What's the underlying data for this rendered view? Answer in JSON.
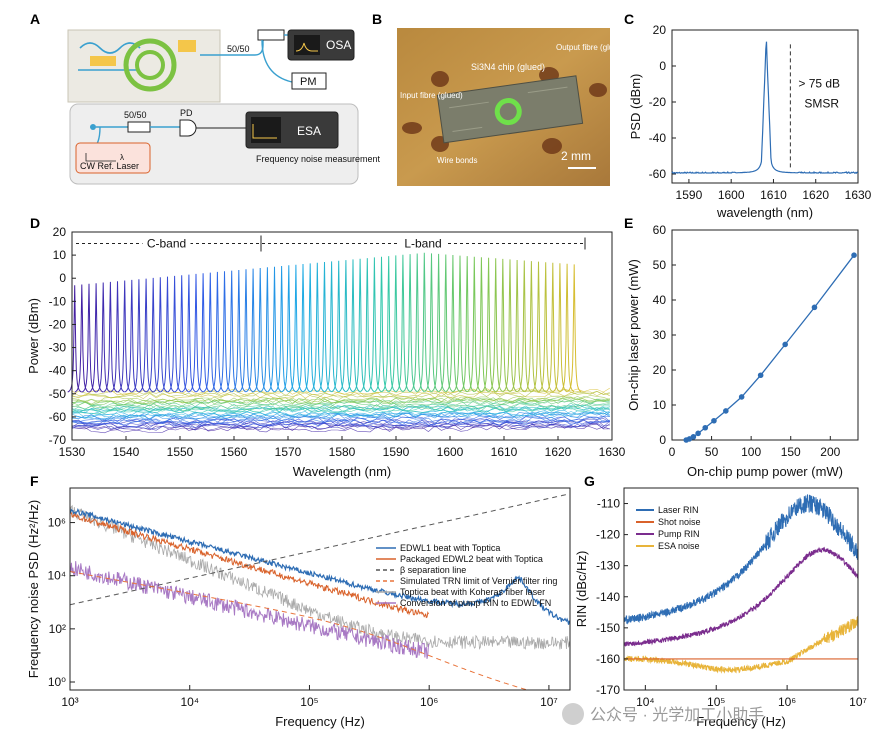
{
  "panels": {
    "A": {
      "letter": "A",
      "splitter_top": "50/50",
      "osa": "OSA",
      "pm": "PM",
      "splitter_bottom": "50/50",
      "pd": "PD",
      "esa": "ESA",
      "laser": "CW Ref. Laser",
      "lambda": "λ",
      "caption": "Frequency noise measurement"
    },
    "B": {
      "letter": "B",
      "chip_label": "Si3N4 chip (glued)",
      "output": "Output fibre (glued)",
      "input": "Input fibre (glued)",
      "wire": "Wire bonds",
      "scale": "2 mm"
    }
  },
  "chart_data": [
    {
      "id": "C",
      "type": "line",
      "letter": "C",
      "xlabel": "wavelength (nm)",
      "ylabel": "PSD (dBm)",
      "xlim": [
        1586,
        1630
      ],
      "ylim": [
        -65,
        20
      ],
      "xticks": [
        1590,
        1600,
        1610,
        1620,
        1630
      ],
      "yticks": [
        20,
        0,
        -20,
        -40,
        -60
      ],
      "peak": {
        "x": 1608.3,
        "y": 15
      },
      "noise_floor": -59.5,
      "annotation": "> 75 dB\nSMSR",
      "annotation_lines": [
        "> 75 dB",
        "SMSR"
      ],
      "dashed_x": 1614,
      "color": "#2e6db4"
    },
    {
      "id": "D",
      "type": "line",
      "letter": "D",
      "xlabel": "Wavelength (nm)",
      "ylabel": "Power (dBm)",
      "xlim": [
        1530,
        1630
      ],
      "ylim": [
        -70,
        20
      ],
      "xticks": [
        1530,
        1540,
        1550,
        1560,
        1570,
        1580,
        1590,
        1600,
        1610,
        1620,
        1630
      ],
      "yticks": [
        20,
        10,
        0,
        -10,
        -20,
        -30,
        -40,
        -50,
        -60,
        -70
      ],
      "bands": [
        {
          "label": "C-band",
          "from": 1530,
          "to": 1565
        },
        {
          "label": "L-band",
          "from": 1565,
          "to": 1625
        }
      ],
      "band_y": 15,
      "line_start": 1530.5,
      "line_end": 1623,
      "num_lines": 71,
      "peak_start": -3,
      "peak_mid": 11,
      "peak_end": 6,
      "noise_floor": -50
    },
    {
      "id": "E",
      "type": "line",
      "letter": "E",
      "xlabel": "On-chip pump power (mW)",
      "ylabel": "On-chip laser power (mW)",
      "xlim": [
        0,
        235
      ],
      "ylim": [
        0,
        60
      ],
      "xticks": [
        0,
        50,
        100,
        150,
        200
      ],
      "yticks": [
        0,
        10,
        20,
        30,
        40,
        50,
        60
      ],
      "x": [
        18,
        22,
        27,
        33,
        42,
        53,
        68,
        88,
        112,
        143,
        180,
        230
      ],
      "y": [
        0,
        0.3,
        0.9,
        1.9,
        3.5,
        5.5,
        8.3,
        12.3,
        18.5,
        27.3,
        37.9,
        52.8
      ],
      "color": "#2e6db4"
    },
    {
      "id": "F",
      "type": "line",
      "letter": "F",
      "xlabel": "Frequency (Hz)",
      "ylabel": "Frequency noise PSD (Hz²/Hz)",
      "xscale": "log",
      "yscale": "log",
      "xlim": [
        1000,
        15000000
      ],
      "ylim": [
        0.5,
        20000000
      ],
      "xtick_labels": [
        "10³",
        "10⁴",
        "10⁵",
        "10⁶",
        "10⁷"
      ],
      "ytick_labels": [
        "10⁰",
        "10²",
        "10⁴",
        "10⁶"
      ],
      "legend": [
        {
          "label": "EDWL1 beat with Toptica",
          "color": "#2e6db4",
          "style": "solid"
        },
        {
          "label": "Packaged EDWL2 beat with Toptica",
          "color": "#d9622b",
          "style": "solid"
        },
        {
          "label": "β separation line",
          "color": "#555555",
          "style": "dashed"
        },
        {
          "label": "Simulated TRN limit of Vernier filter ring",
          "color": "#e8733a",
          "style": "dashed"
        },
        {
          "label": "Toptica beat with Koheras fiber laser",
          "color": "#aaaaaa",
          "style": "solid"
        },
        {
          "label": "Conversion of pump RIN to EDWL FN",
          "color": "#a879c4",
          "style": "solid"
        }
      ]
    },
    {
      "id": "G",
      "type": "line",
      "letter": "G",
      "xlabel": "Frequency (Hz)",
      "ylabel": "RIN (dBc/Hz)",
      "xscale": "log",
      "xlim": [
        5000,
        10000000
      ],
      "ylim": [
        -170,
        -105
      ],
      "xtick_labels": [
        "10⁴",
        "10⁵",
        "10⁶",
        "10⁷"
      ],
      "yticks": [
        -110,
        -120,
        -130,
        -140,
        -150,
        -160,
        -170
      ],
      "legend": [
        {
          "label": "Laser RIN",
          "color": "#2e6db4"
        },
        {
          "label": "Shot noise",
          "color": "#d9622b"
        },
        {
          "label": "Pump RIN",
          "color": "#7b2d8e"
        },
        {
          "label": "ESA noise",
          "color": "#e8b43a"
        }
      ],
      "shot_noise": -160
    }
  ],
  "watermark": "公众号 · 光学加工小助手"
}
